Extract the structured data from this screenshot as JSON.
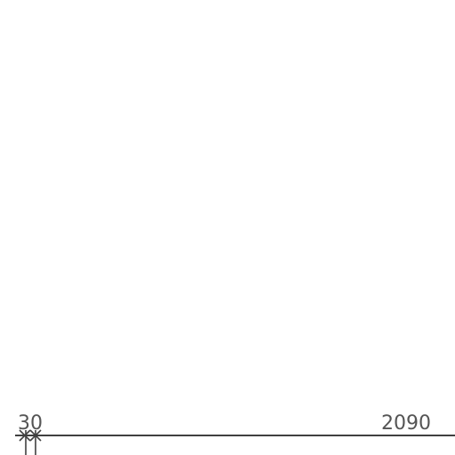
{
  "dimension": {
    "start_label": "30",
    "end_label": "2090"
  },
  "colors": {
    "line": "#404040",
    "text": "#555555",
    "background": "#ffffff"
  }
}
